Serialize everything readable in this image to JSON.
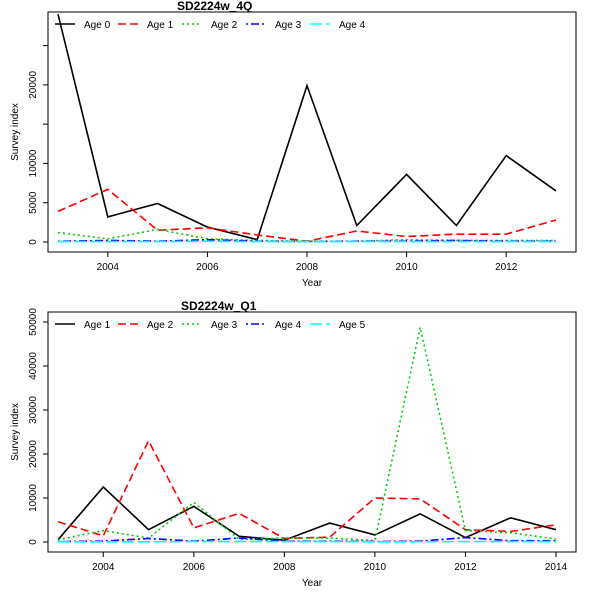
{
  "chart_data": [
    {
      "type": "line",
      "title": "SD2224w_4Q",
      "xlabel": "Year",
      "ylabel": "Survey index",
      "xlim": [
        2003,
        2013
      ],
      "ylim": [
        0,
        28000
      ],
      "x": [
        2003,
        2004,
        2005,
        2006,
        2007,
        2008,
        2009,
        2010,
        2011,
        2012,
        2013
      ],
      "x_ticks": [
        "2004",
        "2006",
        "2008",
        "2010",
        "2012"
      ],
      "y_ticks": [
        "0",
        "5000",
        "10000",
        "20000"
      ],
      "grid": false,
      "legend_position": "top-left",
      "series": [
        {
          "name": "Age 0",
          "color": "#000000",
          "dash": "solid",
          "values": [
            29000,
            3200,
            4900,
            1900,
            300,
            19900,
            2100,
            8600,
            2100,
            11000,
            6500
          ]
        },
        {
          "name": "Age 1",
          "color": "#ff0000",
          "dash": "dashed",
          "values": [
            3900,
            6700,
            1500,
            1800,
            900,
            100,
            1400,
            700,
            1000,
            1000,
            2800
          ]
        },
        {
          "name": "Age 2",
          "color": "#00cd00",
          "dash": "dotted",
          "values": [
            1200,
            400,
            1600,
            400,
            200,
            100,
            100,
            300,
            200,
            200,
            200
          ]
        },
        {
          "name": "Age 3",
          "color": "#0000ff",
          "dash": "dotdash",
          "values": [
            100,
            200,
            100,
            300,
            100,
            50,
            100,
            100,
            200,
            100,
            100
          ]
        },
        {
          "name": "Age 4",
          "color": "#00ffff",
          "dash": "longdash",
          "values": [
            50,
            50,
            50,
            100,
            50,
            50,
            50,
            50,
            50,
            50,
            50
          ]
        }
      ]
    },
    {
      "type": "line",
      "title": "SD2224w_Q1",
      "xlabel": "Year",
      "ylabel": "Survey index",
      "xlim": [
        2003,
        2014
      ],
      "ylim": [
        0,
        50000
      ],
      "x": [
        2003,
        2004,
        2005,
        2006,
        2007,
        2008,
        2009,
        2010,
        2011,
        2012,
        2013,
        2014
      ],
      "x_ticks": [
        "2004",
        "2006",
        "2008",
        "2010",
        "2012",
        "2014"
      ],
      "y_ticks": [
        "0",
        "10000",
        "20000",
        "30000",
        "40000",
        "50000"
      ],
      "grid": false,
      "legend_position": "top-left",
      "series": [
        {
          "name": "Age 1",
          "color": "#000000",
          "dash": "solid",
          "values": [
            500,
            12500,
            2800,
            8100,
            1300,
            400,
            4300,
            1600,
            6400,
            1000,
            5500,
            2800
          ]
        },
        {
          "name": "Age 2",
          "color": "#ff0000",
          "dash": "dashed",
          "values": [
            4600,
            1400,
            23000,
            3200,
            6500,
            800,
            1100,
            10000,
            9800,
            2800,
            2400,
            3900
          ]
        },
        {
          "name": "Age 3",
          "color": "#00cd00",
          "dash": "dotted",
          "values": [
            500,
            2600,
            900,
            9000,
            600,
            900,
            900,
            300,
            48800,
            2600,
            2100,
            700
          ]
        },
        {
          "name": "Age 4",
          "color": "#0000ff",
          "dash": "dotdash",
          "values": [
            100,
            200,
            800,
            200,
            900,
            200,
            200,
            100,
            200,
            1000,
            300,
            300
          ]
        },
        {
          "name": "Age 5",
          "color": "#00ffff",
          "dash": "longdash",
          "values": [
            50,
            50,
            50,
            100,
            100,
            100,
            100,
            50,
            50,
            100,
            100,
            100
          ]
        }
      ]
    }
  ]
}
